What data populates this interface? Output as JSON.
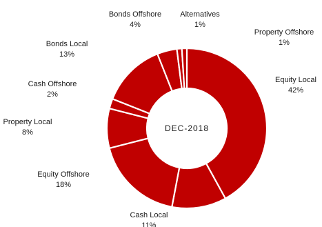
{
  "chart_data": {
    "type": "pie",
    "subtype": "donut",
    "center_label": "DEC-2018",
    "slice_color": "#C00000",
    "separator_color": "#FFFFFF",
    "slices": [
      {
        "name": "Equity Local",
        "value": 42,
        "label": "42%"
      },
      {
        "name": "Cash Local",
        "value": 11,
        "label": "11%"
      },
      {
        "name": "Equity Offshore",
        "value": 18,
        "label": "18%"
      },
      {
        "name": "Property Local",
        "value": 8,
        "label": "8%"
      },
      {
        "name": "Cash Offshore",
        "value": 2,
        "label": "2%"
      },
      {
        "name": "Bonds Local",
        "value": 13,
        "label": "13%"
      },
      {
        "name": "Bonds Offshore",
        "value": 4,
        "label": "4%"
      },
      {
        "name": "Alternatives",
        "value": 1,
        "label": "1%"
      },
      {
        "name": "Property Offshore",
        "value": 1,
        "label": "1%"
      }
    ]
  }
}
